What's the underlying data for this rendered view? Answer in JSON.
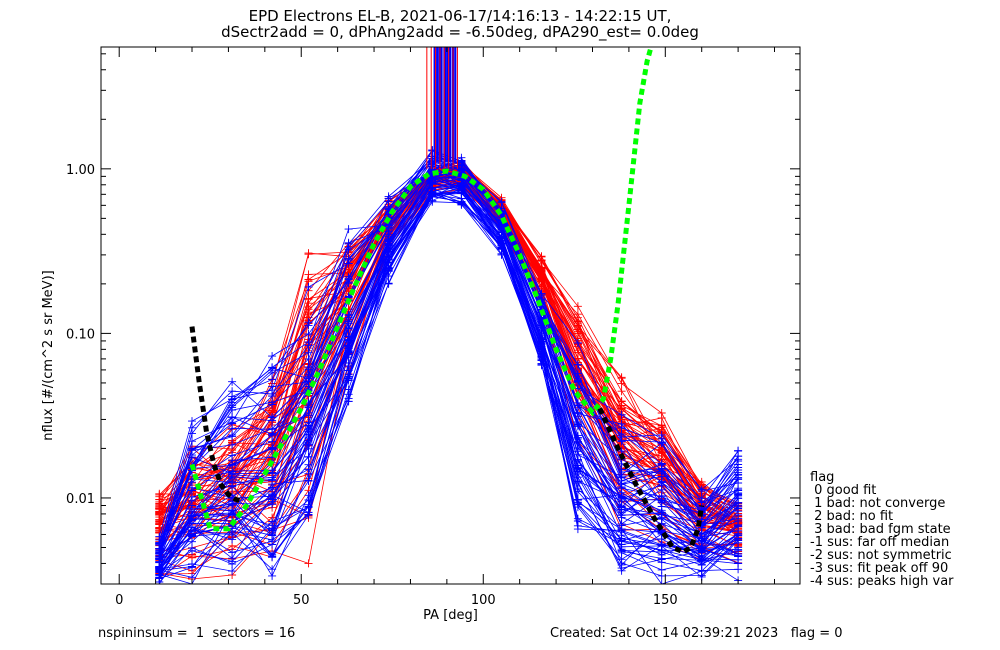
{
  "title_line1": "EPD Electrons EL-B, 2021-06-17/14:16:13 - 14:22:15 UT,",
  "title_line2": "dSectr2add = 0, dPhAng2add = -6.50deg, dPA290_est=   0.0deg",
  "legend": {
    "title": "flag",
    "items": [
      " 0 good fit",
      " 1 bad: not converge",
      " 2 bad: no fit",
      " 3 bad: bad fgm state",
      "-1 sus: far off median",
      "-2 sus: not symmetric",
      "-3 sus: fit peak off 90",
      "-4 sus: peaks high var"
    ]
  },
  "footer": {
    "left": "nspininsum =  1  sectors = 16",
    "right": "Created: Sat Oct 14 02:39:21 2023   flag = 0"
  },
  "colors": {
    "red": "#ff0000",
    "blue": "#0000ff",
    "green": "#00ff00",
    "black": "#000000"
  },
  "chart_data": {
    "type": "line",
    "xlabel": "PA [deg]",
    "ylabel": "nflux [#/(cm^2 s sr MeV)]",
    "xlim": [
      -5,
      187
    ],
    "ylim": [
      0.003,
      5.5
    ],
    "yscale": "log",
    "xticks": [
      0,
      50,
      100,
      150
    ],
    "yticks": [
      0.01,
      0.1,
      1.0
    ],
    "ytick_labels": [
      "0.01",
      "0.10",
      "1.00"
    ],
    "pa_bins": [
      11,
      20,
      31,
      42,
      52,
      63,
      74,
      86,
      94,
      105,
      116,
      126,
      138,
      149,
      160,
      170
    ],
    "red_envelope": {
      "low": [
        0.003,
        0.003,
        0.003,
        0.003,
        0.004,
        0.05,
        0.28,
        0.7,
        0.7,
        0.4,
        0.14,
        0.02,
        0.006,
        0.005,
        0.004,
        0.004
      ],
      "high": [
        0.013,
        0.022,
        0.03,
        0.06,
        0.37,
        0.45,
        0.72,
        1.05,
        1.15,
        0.7,
        0.3,
        0.15,
        0.06,
        0.035,
        0.015,
        0.01
      ]
    },
    "blue_envelope": {
      "low": [
        0.003,
        0.003,
        0.003,
        0.003,
        0.005,
        0.03,
        0.2,
        0.6,
        0.6,
        0.3,
        0.06,
        0.006,
        0.003,
        0.003,
        0.003,
        0.003
      ],
      "high": [
        0.006,
        0.033,
        0.06,
        0.105,
        0.2,
        0.48,
        0.7,
        1.3,
        1.2,
        0.65,
        0.2,
        0.09,
        0.032,
        0.025,
        0.012,
        0.025
      ]
    },
    "series": [
      {
        "color": "green",
        "style": "dashed",
        "x": [
          20,
          25,
          30,
          35,
          40,
          45,
          50,
          55,
          60,
          65,
          70,
          75,
          80,
          85,
          90,
          95,
          100,
          105,
          110,
          115,
          120,
          125,
          130,
          133,
          135,
          137,
          140,
          143,
          145,
          146
        ],
        "y": [
          0.016,
          0.0065,
          0.0065,
          0.009,
          0.014,
          0.022,
          0.035,
          0.06,
          0.11,
          0.2,
          0.35,
          0.55,
          0.78,
          0.93,
          0.97,
          0.9,
          0.75,
          0.52,
          0.3,
          0.16,
          0.08,
          0.045,
          0.033,
          0.04,
          0.07,
          0.15,
          0.6,
          2.5,
          4.5,
          5.4
        ]
      },
      {
        "color": "black",
        "style": "dashed",
        "x": [
          20,
          22,
          24,
          26,
          28,
          30,
          32,
          34
        ],
        "y": [
          0.11,
          0.05,
          0.025,
          0.016,
          0.012,
          0.0105,
          0.0098,
          0.0095
        ]
      },
      {
        "color": "black",
        "style": "dashed",
        "x": [
          132,
          137,
          142,
          147,
          152,
          155,
          157,
          159,
          160
        ],
        "y": [
          0.035,
          0.02,
          0.012,
          0.0075,
          0.005,
          0.0047,
          0.005,
          0.0065,
          0.009
        ]
      }
    ]
  }
}
